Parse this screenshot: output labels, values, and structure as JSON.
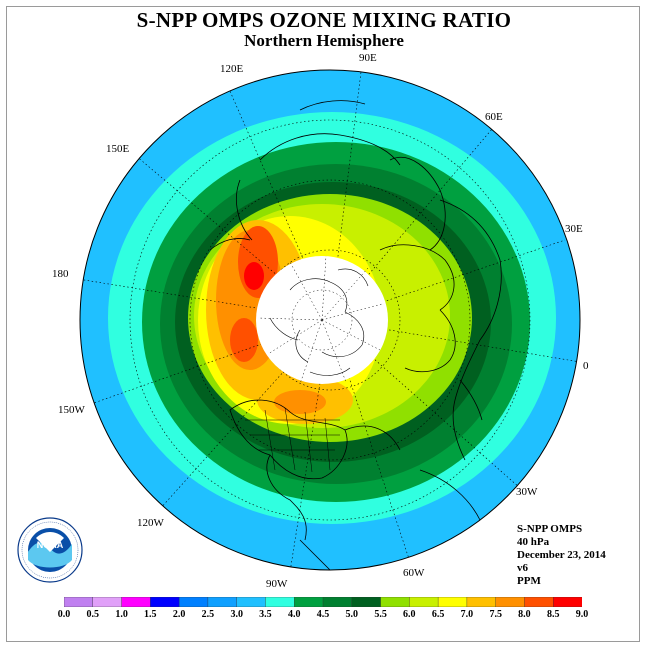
{
  "header": {
    "title": "S-NPP OMPS OZONE MIXING RATIO",
    "subtitle": "Northern Hemisphere"
  },
  "map": {
    "projection": "north-polar-stereographic",
    "longitude_labels": [
      {
        "text": "90E",
        "lon": 90
      },
      {
        "text": "120E",
        "lon": 120
      },
      {
        "text": "60E",
        "lon": 60
      },
      {
        "text": "150E",
        "lon": 150
      },
      {
        "text": "30E",
        "lon": 30
      },
      {
        "text": "180",
        "lon": 180
      },
      {
        "text": "0",
        "lon": 0
      },
      {
        "text": "150W",
        "lon": -150
      },
      {
        "text": "30W",
        "lon": -30
      },
      {
        "text": "120W",
        "lon": -120
      },
      {
        "text": "90W",
        "lon": -90
      },
      {
        "text": "60W",
        "lon": -60
      }
    ],
    "polar_night_region": "no data (white)"
  },
  "info": {
    "instrument": "S-NPP OMPS",
    "level": "40 hPa",
    "date": "December 23, 2014",
    "version": "v6",
    "units": "PPM"
  },
  "colorbar": {
    "ticks": [
      "0.0",
      "0.5",
      "1.0",
      "1.5",
      "2.0",
      "2.5",
      "3.0",
      "3.5",
      "4.0",
      "4.5",
      "5.0",
      "5.5",
      "6.0",
      "6.5",
      "7.0",
      "7.5",
      "8.0",
      "8.5",
      "9.0"
    ],
    "colors": [
      "#c080f0",
      "#e0a0f8",
      "#ff00ff",
      "#0000ff",
      "#0080ff",
      "#10a0ff",
      "#20c0ff",
      "#30ffe0",
      "#00a040",
      "#008030",
      "#006020",
      "#90e000",
      "#c8f000",
      "#ffff00",
      "#ffc000",
      "#ff9000",
      "#ff5000",
      "#ff0000",
      "#a05030"
    ]
  },
  "logo": {
    "text": "NOAA",
    "ring_text": "NATIONAL OCEANIC AND ATMOSPHERIC ADMINISTRATION · U.S. DEPARTMENT OF COMMERCE"
  }
}
